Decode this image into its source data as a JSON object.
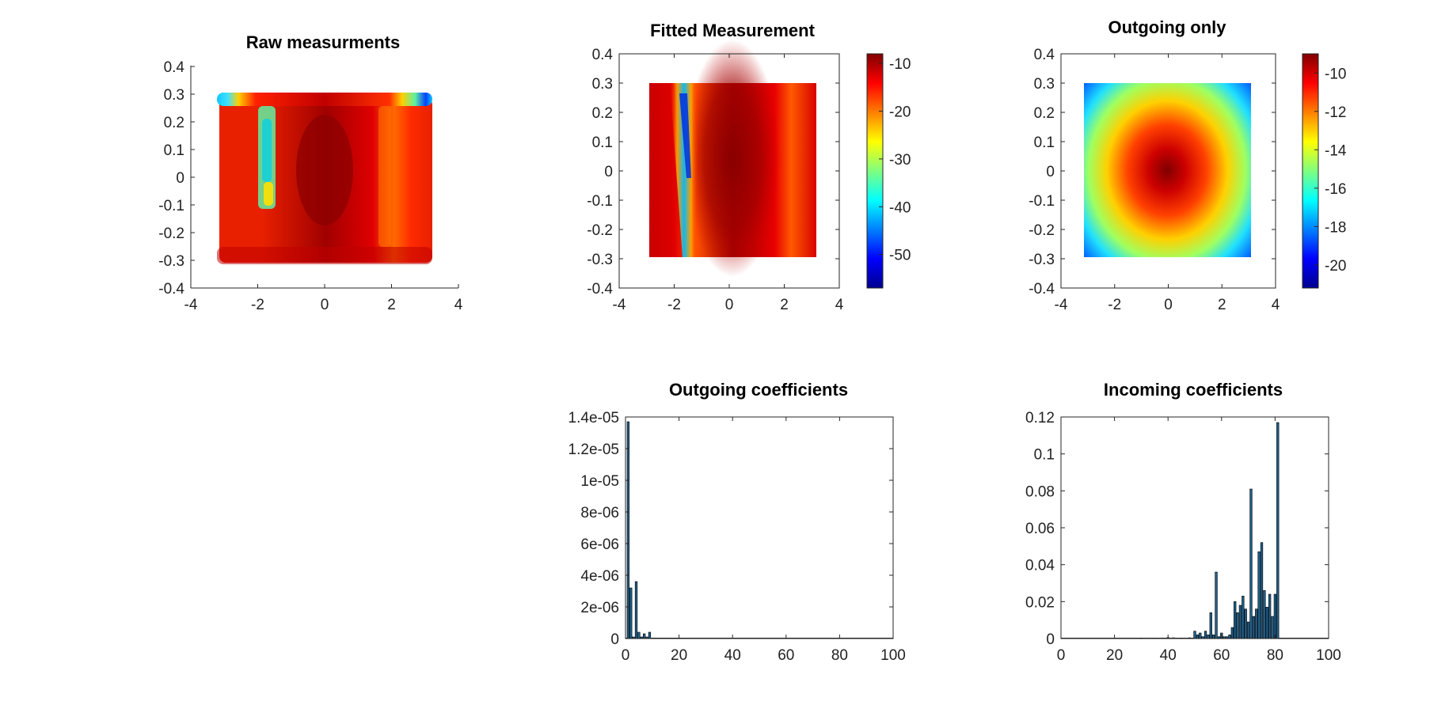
{
  "chart_data": [
    {
      "id": "raw",
      "type": "scatter",
      "title": "Raw measurments",
      "xlim": [
        -4,
        4
      ],
      "ylim": [
        -0.4,
        0.4
      ],
      "xticks": [
        "-4",
        "-2",
        "0",
        "2",
        "4"
      ],
      "yticks": [
        "0.4",
        "0.3",
        "0.2",
        "0.1",
        "0",
        "-0.1",
        "-0.2",
        "-0.3",
        "-0.4"
      ],
      "grid": false,
      "data_extent": {
        "x": [
          -3.14,
          3.14
        ],
        "y": [
          -0.3,
          0.3
        ]
      },
      "colormap": "jet",
      "description_values": {
        "clim": [
          -57,
          -5
        ]
      }
    },
    {
      "id": "fitted",
      "type": "heatmap",
      "title": "Fitted Measurement",
      "xlim": [
        -4,
        4
      ],
      "ylim": [
        -0.4,
        0.4
      ],
      "xticks": [
        "-4",
        "-2",
        "0",
        "2",
        "4"
      ],
      "yticks": [
        "0.4",
        "0.3",
        "0.2",
        "0.1",
        "0",
        "-0.1",
        "-0.2",
        "-0.3",
        "-0.4"
      ],
      "data_extent": {
        "x": [
          -3.14,
          3.14
        ],
        "y": [
          -0.3,
          0.3
        ]
      },
      "colormap": "jet",
      "clim": [
        -57,
        -8
      ],
      "colorbar_ticks": [
        "-10",
        "-20",
        "-30",
        "-40",
        "-50"
      ]
    },
    {
      "id": "outgoing_only",
      "type": "heatmap",
      "title": "Outgoing only",
      "xlim": [
        -4,
        4
      ],
      "ylim": [
        -0.4,
        0.4
      ],
      "xticks": [
        "-4",
        "-2",
        "0",
        "2",
        "4"
      ],
      "yticks": [
        "0.4",
        "0.3",
        "0.2",
        "0.1",
        "0",
        "-0.1",
        "-0.2",
        "-0.3",
        "-0.4"
      ],
      "data_extent": {
        "x": [
          -3.14,
          3.14
        ],
        "y": [
          -0.3,
          0.3
        ]
      },
      "colormap": "jet",
      "clim": [
        -21.2,
        -9.0
      ],
      "colorbar_ticks": [
        "-10",
        "-12",
        "-14",
        "-16",
        "-18",
        "-20"
      ]
    },
    {
      "id": "outgoing_coeffs",
      "type": "bar",
      "title": "Outgoing coefficients",
      "xlim": [
        0,
        100
      ],
      "ylim": [
        0,
        1.4e-05
      ],
      "xticks": [
        "0",
        "20",
        "40",
        "60",
        "80",
        "100"
      ],
      "yticks": [
        "1.4e-05",
        "1.2e-05",
        "1e-05",
        "8e-06",
        "6e-06",
        "4e-06",
        "2e-06",
        "0"
      ],
      "x": [
        1,
        2,
        3,
        4,
        5,
        6,
        7,
        8,
        9,
        10,
        11,
        12,
        13,
        14,
        15,
        16,
        17,
        18,
        19,
        20
      ],
      "values": [
        1.37e-05,
        3.2e-06,
        1e-07,
        3.6e-06,
        4e-07,
        1e-07,
        3e-07,
        1e-07,
        4e-07,
        1e-08,
        1e-08,
        1e-08,
        1e-08,
        1e-08,
        1e-08,
        1e-08,
        1e-08,
        1e-08,
        1e-08,
        1e-08
      ],
      "bar_color": "#1f5f8b"
    },
    {
      "id": "incoming_coeffs",
      "type": "bar",
      "title": "Incoming coefficients",
      "xlim": [
        0,
        100
      ],
      "ylim": [
        0,
        0.12
      ],
      "xticks": [
        "0",
        "20",
        "40",
        "60",
        "80",
        "100"
      ],
      "yticks": [
        "0.12",
        "0.1",
        "0.08",
        "0.06",
        "0.04",
        "0.02",
        "0"
      ],
      "x": [
        30,
        35,
        38,
        40,
        42,
        45,
        48,
        50,
        51,
        52,
        53,
        54,
        55,
        56,
        57,
        58,
        59,
        60,
        61,
        62,
        63,
        64,
        65,
        66,
        67,
        68,
        69,
        70,
        71,
        72,
        73,
        74,
        75,
        76,
        77,
        78,
        79,
        80,
        81
      ],
      "values": [
        0.0003,
        0.0002,
        0.0003,
        0.0005,
        0.0004,
        0.0003,
        0.0004,
        0.004,
        0.002,
        0.003,
        0.001,
        0.004,
        0.002,
        0.014,
        0.002,
        0.036,
        0.001,
        0.003,
        0.001,
        0.001,
        0.002,
        0.006,
        0.02,
        0.014,
        0.018,
        0.023,
        0.016,
        0.009,
        0.081,
        0.012,
        0.016,
        0.047,
        0.052,
        0.026,
        0.017,
        0.024,
        0.012,
        0.024,
        0.117
      ],
      "bar_color": "#1f5f8b"
    }
  ]
}
